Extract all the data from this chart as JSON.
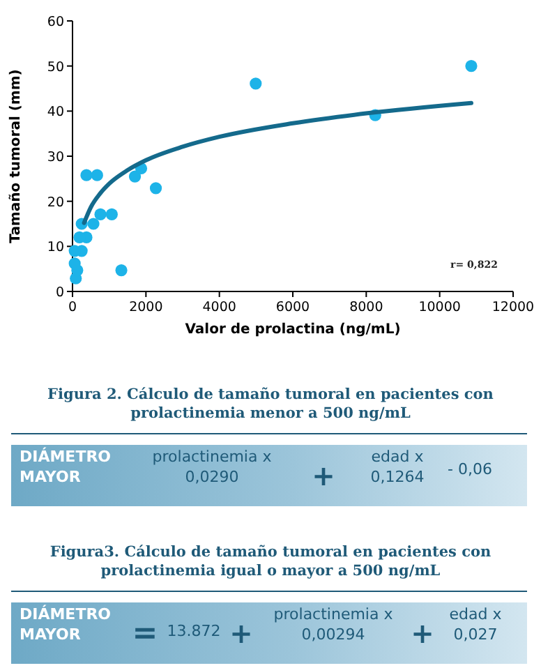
{
  "chart_data": {
    "type": "scatter",
    "xlabel": "Valor de prolactina (ng/mL)",
    "ylabel": "Tamaño tumoral (mm)",
    "xlim": [
      0,
      12000
    ],
    "xticks": [
      0,
      2000,
      4000,
      6000,
      8000,
      10000,
      12000
    ],
    "ylim": [
      0,
      60
    ],
    "yticks": [
      0,
      10,
      20,
      30,
      40,
      50,
      60
    ],
    "marker": "circle",
    "series": [
      {
        "color": "#1db3e8",
        "x": [
          10860,
          4990,
          8245,
          2270,
          1700,
          1870,
          1330,
          1070,
          760,
          570,
          380,
          670,
          250,
          380,
          190,
          250,
          60,
          90,
          130,
          60
        ],
        "values": [
          50,
          46.1,
          39.1,
          22.9,
          25.5,
          27.3,
          4.7,
          17.1,
          17.1,
          15,
          25.8,
          25.8,
          15,
          12,
          12,
          9,
          9,
          2.9,
          4.7,
          6.2
        ]
      },
      {
        "type": "line",
        "color": "#146a8c",
        "line_style": "solid",
        "marker": "none",
        "x": [
          315,
          500,
          750,
          1000,
          1500,
          2000,
          3000,
          4000,
          6000,
          8000,
          10860
        ],
        "values": [
          15.2,
          18.7,
          21.7,
          23.9,
          26.9,
          29.1,
          32.1,
          34.3,
          37.3,
          39.5,
          41.8
        ]
      }
    ],
    "annotations": [
      "r= 0,822",
      "Figura 2. Cálculo de tamaño tumoral en pacientes con\nprolactinemia menor a 500 ng/mL",
      "DIÁMETRO\nMAYOR",
      "prolactinemia x\n0,0290",
      "+",
      "edad x\n0,1264",
      "- 0,06",
      "Figura3. Cálculo de tamaño tumoral en pacientes con\nprolactinemia igual o mayor a 500 ng/mL",
      "DIÁMETRO\nMAYOR",
      "=",
      "13.872",
      "+",
      "prolactinemia x\n0,00294",
      "+",
      "edad x\n0,027"
    ]
  }
}
